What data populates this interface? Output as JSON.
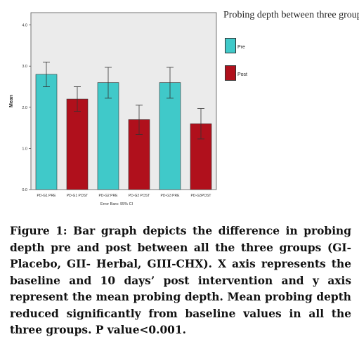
{
  "chart_data": {
    "type": "bar",
    "categories": [
      "PD-G1 PRE",
      "PD-G1 POST",
      "PD-G2 PRE",
      "PD-G2 POST",
      "PD-G3 PRE",
      "PD-G3POST"
    ],
    "values": [
      2.8,
      2.2,
      2.6,
      1.7,
      2.6,
      1.6
    ],
    "error_low": [
      2.5,
      1.9,
      2.22,
      1.34,
      2.22,
      1.23
    ],
    "error_high": [
      3.1,
      2.5,
      2.97,
      2.05,
      2.97,
      1.97
    ],
    "bar_series": [
      "Pre",
      "Post",
      "Pre",
      "Post",
      "Pre",
      "Post"
    ],
    "series": [
      {
        "name": "Pre",
        "color": "#40c9c9"
      },
      {
        "name": "Post",
        "color": "#b0101c"
      }
    ],
    "ylabel": "Mean",
    "xnote": "Error Bars: 95% CI",
    "yticks": [
      "0.0",
      "1.0",
      "2.0",
      "3.0",
      "4.0"
    ],
    "ylim": [
      0,
      4.3
    ],
    "legend_title": "Probing depth between three groups",
    "legend_position": "right",
    "plot_background": "#ebebeb",
    "grid": false
  },
  "caption": "Figure 1: Bar graph depicts the difference in probing depth pre and post between all the three groups (GI-Placebo, GII- Herbal, GIII-CHX). X axis represents the baseline and 10 days’ post intervention and y axis represent the mean probing depth. Mean probing depth reduced significantly from baseline values in all the three groups. P value<0.001."
}
